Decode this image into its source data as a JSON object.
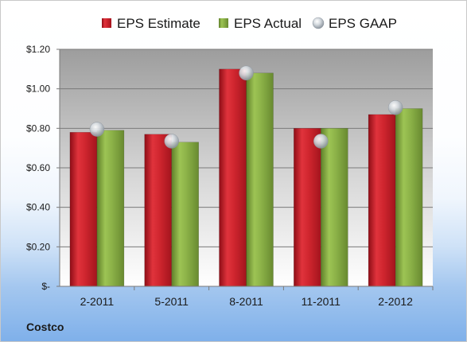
{
  "chart_data": {
    "type": "bar",
    "categories": [
      "2-2011",
      "5-2011",
      "8-2011",
      "11-2011",
      "2-2012"
    ],
    "series": [
      {
        "name": "EPS Estimate",
        "kind": "bar",
        "color": "#c8222c",
        "values": [
          0.78,
          0.77,
          1.1,
          0.8,
          0.87
        ]
      },
      {
        "name": "EPS Actual",
        "kind": "bar",
        "color": "#84a940",
        "values": [
          0.79,
          0.73,
          1.08,
          0.8,
          0.9
        ]
      },
      {
        "name": "EPS GAAP",
        "kind": "scatter",
        "color": "#b9c3cc",
        "values": [
          0.795,
          0.735,
          1.08,
          0.735,
          0.905
        ]
      }
    ],
    "ylim": [
      0,
      1.2
    ],
    "yticks": [
      0,
      0.2,
      0.4,
      0.6,
      0.8,
      1.0,
      1.2
    ],
    "ytick_labels": [
      "$-",
      "$0.20",
      "$0.40",
      "$0.60",
      "$0.80",
      "$1.00",
      "$1.20"
    ],
    "grid": true,
    "legend_position": "top",
    "plot_background": [
      "#9d9d9d",
      "#d8d8d8",
      "#ffffff"
    ]
  },
  "footer": {
    "company": "Costco"
  }
}
